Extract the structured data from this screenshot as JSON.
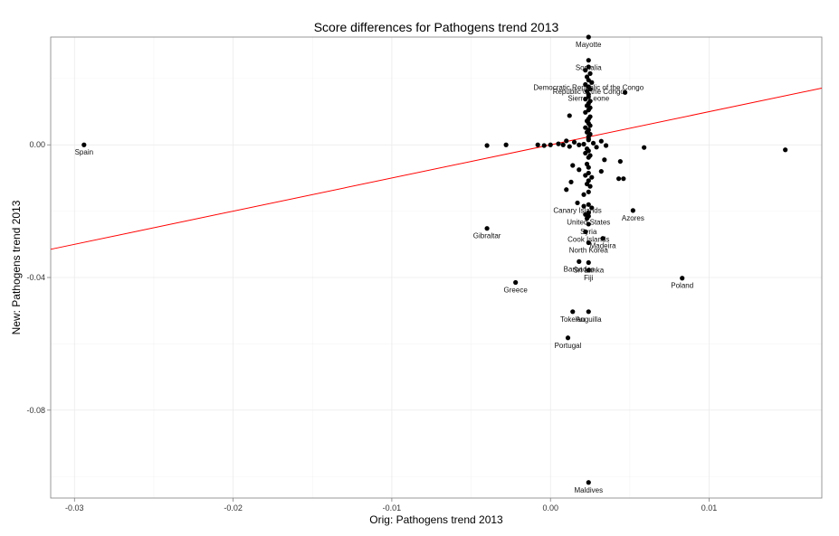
{
  "chart_data": {
    "type": "scatter",
    "title": "Score differences for Pathogens trend 2013",
    "xlabel": "Orig: Pathogens trend 2013",
    "ylabel": "New: Pathogens trend 2013",
    "xlim": [
      -0.0315,
      0.0171
    ],
    "ylim": [
      -0.1065,
      0.0325
    ],
    "x_ticks": [
      -0.03,
      -0.02,
      -0.01,
      0.0,
      0.01
    ],
    "x_tick_labels": [
      "-0.03",
      "-0.02",
      "-0.01",
      "0.00",
      "0.01"
    ],
    "y_ticks": [
      -0.08,
      -0.04,
      0.0
    ],
    "y_tick_labels": [
      "-0.08",
      "-0.04",
      "0.00"
    ],
    "grid": true,
    "background": "#ffffff",
    "grid_color": "#ebebeb",
    "point_color": "#000000",
    "trend_line_color": "#ff0000",
    "trend_line": {
      "x": [
        -0.0315,
        0.0171
      ],
      "y": [
        -0.0315,
        0.0171
      ]
    },
    "labeled_points": [
      {
        "label": "Mayotte",
        "x": 0.0024,
        "y": 0.0325
      },
      {
        "label": "Spain",
        "x": -0.0294,
        "y": 0.0
      },
      {
        "label": "Gibraltar",
        "x": -0.004,
        "y": -0.0252
      },
      {
        "label": "Greece",
        "x": -0.0022,
        "y": -0.0415
      },
      {
        "label": "Poland",
        "x": 0.0083,
        "y": -0.0402
      },
      {
        "label": "Azores",
        "x": 0.0052,
        "y": -0.0198
      },
      {
        "label": "Maldives",
        "x": 0.0024,
        "y": -0.1018
      },
      {
        "label": "Portugal",
        "x": 0.0011,
        "y": -0.0582
      },
      {
        "label": "Tokelau",
        "x": 0.0014,
        "y": -0.0503
      },
      {
        "label": "Anguilla",
        "x": 0.0024,
        "y": -0.0503
      },
      {
        "label": "Fiji",
        "x": 0.0024,
        "y": -0.0378
      },
      {
        "label": "Sri Lanka",
        "x": 0.0024,
        "y": -0.0355
      },
      {
        "label": "Barbados",
        "x": 0.0018,
        "y": -0.0352
      },
      {
        "label": "North Korea",
        "x": 0.0024,
        "y": -0.0295
      },
      {
        "label": "Madeira",
        "x": 0.0033,
        "y": -0.0282
      },
      {
        "label": "Cook Islands",
        "x": 0.0024,
        "y": -0.0262
      },
      {
        "label": "Syria",
        "x": 0.0024,
        "y": -0.0239
      },
      {
        "label": "United States",
        "x": 0.0024,
        "y": -0.021
      },
      {
        "label": "Canary Islands",
        "x": 0.0017,
        "y": -0.0175
      },
      {
        "label": "Somalia",
        "x": 0.0024,
        "y": 0.0255
      },
      {
        "label": "Democratic Republic of the Congo",
        "x": 0.0024,
        "y": 0.0195
      },
      {
        "label": "Republic of the Congo",
        "x": 0.0024,
        "y": 0.0183
      },
      {
        "label": "Sierra Leone",
        "x": 0.0024,
        "y": 0.0163
      }
    ],
    "points": [
      {
        "x": -0.0294,
        "y": 0.0
      },
      {
        "x": -0.004,
        "y": -0.0002
      },
      {
        "x": -0.0028,
        "y": 0.0
      },
      {
        "x": -0.0008,
        "y": 0.0
      },
      {
        "x": -0.0004,
        "y": -0.0002
      },
      {
        "x": 0.0,
        "y": 0.0
      },
      {
        "x": 0.0005,
        "y": 0.0003
      },
      {
        "x": 0.0008,
        "y": 0.0
      },
      {
        "x": 0.001,
        "y": 0.0012
      },
      {
        "x": 0.0012,
        "y": -0.0005
      },
      {
        "x": 0.0015,
        "y": 0.0008
      },
      {
        "x": 0.0018,
        "y": 0.0
      },
      {
        "x": 0.0021,
        "y": 0.0002
      },
      {
        "x": 0.0024,
        "y": 0.0015
      },
      {
        "x": 0.0027,
        "y": 0.0005
      },
      {
        "x": 0.0029,
        "y": -0.0007
      },
      {
        "x": 0.0032,
        "y": 0.0011
      },
      {
        "x": 0.0035,
        "y": -0.0002
      },
      {
        "x": 0.0059,
        "y": -0.0008
      },
      {
        "x": 0.0148,
        "y": -0.0015
      },
      {
        "x": 0.0024,
        "y": 0.0325
      },
      {
        "x": 0.0024,
        "y": 0.0255
      },
      {
        "x": 0.0024,
        "y": 0.0235
      },
      {
        "x": 0.0022,
        "y": 0.0225
      },
      {
        "x": 0.0025,
        "y": 0.0215
      },
      {
        "x": 0.0023,
        "y": 0.0205
      },
      {
        "x": 0.0024,
        "y": 0.0195
      },
      {
        "x": 0.0026,
        "y": 0.0188
      },
      {
        "x": 0.0022,
        "y": 0.0182
      },
      {
        "x": 0.0024,
        "y": 0.0175
      },
      {
        "x": 0.0025,
        "y": 0.0168
      },
      {
        "x": 0.0023,
        "y": 0.0162
      },
      {
        "x": 0.0047,
        "y": 0.0158
      },
      {
        "x": 0.0024,
        "y": 0.0152
      },
      {
        "x": 0.0024,
        "y": 0.0145
      },
      {
        "x": 0.0022,
        "y": 0.0138
      },
      {
        "x": 0.0025,
        "y": 0.0132
      },
      {
        "x": 0.0024,
        "y": 0.0125
      },
      {
        "x": 0.0023,
        "y": 0.0118
      },
      {
        "x": 0.0025,
        "y": 0.0112
      },
      {
        "x": 0.0024,
        "y": 0.0105
      },
      {
        "x": 0.0022,
        "y": 0.0098
      },
      {
        "x": 0.0012,
        "y": 0.0088
      },
      {
        "x": 0.0025,
        "y": 0.0085
      },
      {
        "x": 0.0024,
        "y": 0.0078
      },
      {
        "x": 0.0023,
        "y": 0.0072
      },
      {
        "x": 0.0024,
        "y": 0.0065
      },
      {
        "x": 0.0025,
        "y": 0.0058
      },
      {
        "x": 0.0022,
        "y": 0.0052
      },
      {
        "x": 0.0024,
        "y": 0.0045
      },
      {
        "x": 0.0023,
        "y": 0.0038
      },
      {
        "x": 0.0025,
        "y": 0.0032
      },
      {
        "x": 0.0024,
        "y": 0.0025
      },
      {
        "x": 0.0024,
        "y": 0.0018
      },
      {
        "x": 0.0023,
        "y": -0.0012
      },
      {
        "x": 0.0024,
        "y": -0.0018
      },
      {
        "x": 0.0022,
        "y": -0.0025
      },
      {
        "x": 0.0025,
        "y": -0.0032
      },
      {
        "x": 0.0024,
        "y": -0.0038
      },
      {
        "x": 0.0034,
        "y": -0.0045
      },
      {
        "x": 0.0044,
        "y": -0.005
      },
      {
        "x": 0.0023,
        "y": -0.0058
      },
      {
        "x": 0.0014,
        "y": -0.0062
      },
      {
        "x": 0.0024,
        "y": -0.0068
      },
      {
        "x": 0.0018,
        "y": -0.0075
      },
      {
        "x": 0.0032,
        "y": -0.008
      },
      {
        "x": 0.0024,
        "y": -0.0085
      },
      {
        "x": 0.0022,
        "y": -0.0092
      },
      {
        "x": 0.0026,
        "y": -0.0098
      },
      {
        "x": 0.0043,
        "y": -0.0102
      },
      {
        "x": 0.0046,
        "y": -0.0102
      },
      {
        "x": 0.0024,
        "y": -0.0108
      },
      {
        "x": 0.0013,
        "y": -0.0112
      },
      {
        "x": 0.0023,
        "y": -0.0118
      },
      {
        "x": 0.0025,
        "y": -0.0125
      },
      {
        "x": 0.001,
        "y": -0.0135
      },
      {
        "x": 0.0024,
        "y": -0.0142
      },
      {
        "x": 0.0021,
        "y": -0.015
      },
      {
        "x": 0.0017,
        "y": -0.0175
      },
      {
        "x": 0.0024,
        "y": -0.018
      },
      {
        "x": 0.0021,
        "y": -0.0185
      },
      {
        "x": 0.0026,
        "y": -0.019
      },
      {
        "x": 0.0052,
        "y": -0.0198
      },
      {
        "x": 0.0024,
        "y": -0.0205
      },
      {
        "x": 0.0022,
        "y": -0.021
      },
      {
        "x": 0.0024,
        "y": -0.0215
      },
      {
        "x": 0.0023,
        "y": -0.0222
      },
      {
        "x": 0.0024,
        "y": -0.0239
      },
      {
        "x": 0.0022,
        "y": -0.0262
      },
      {
        "x": 0.0033,
        "y": -0.0282
      },
      {
        "x": 0.0024,
        "y": -0.0295
      },
      {
        "x": 0.0018,
        "y": -0.0352
      },
      {
        "x": 0.0024,
        "y": -0.0355
      },
      {
        "x": 0.0024,
        "y": -0.0378
      },
      {
        "x": -0.004,
        "y": -0.0252
      },
      {
        "x": -0.0022,
        "y": -0.0415
      },
      {
        "x": 0.0083,
        "y": -0.0402
      },
      {
        "x": 0.0014,
        "y": -0.0503
      },
      {
        "x": 0.0024,
        "y": -0.0503
      },
      {
        "x": 0.0011,
        "y": -0.0582
      },
      {
        "x": 0.0024,
        "y": -0.1018
      }
    ]
  }
}
